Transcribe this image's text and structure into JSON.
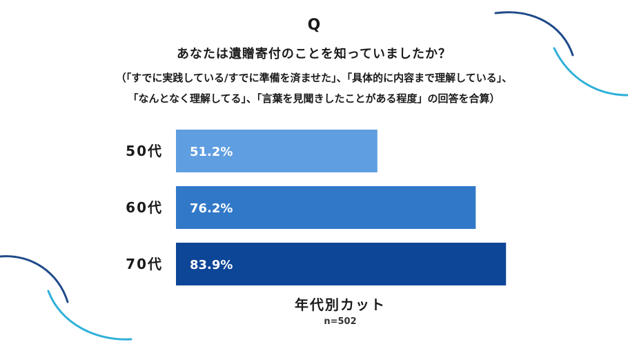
{
  "header": {
    "q_mark": "Q",
    "title": "あなたは遺贈寄付のことを知っていましたか？",
    "subtitle_line1": "（「すでに実践している/すでに準備を済ませた」、「具体的に内容まで理解している」、",
    "subtitle_line2": "「なんとなく理解してる」、「言葉を見聞きしたことがある程度」の回答を合算）"
  },
  "chart_data": {
    "type": "bar",
    "orientation": "horizontal",
    "title": "あなたは遺贈寄付のことを知っていましたか？",
    "categories": [
      "50代",
      "60代",
      "70代"
    ],
    "values": [
      51.2,
      76.2,
      83.9
    ],
    "value_labels": [
      "51.2%",
      "76.2%",
      "83.9%"
    ],
    "bar_colors": [
      "#5f9ee0",
      "#3179c8",
      "#0d4597"
    ],
    "xlabel": "年代別カット",
    "note": "n=502",
    "xlim": [
      0,
      100
    ],
    "grid": false
  },
  "decor": {
    "arc_color_dark": "#1f4a8a",
    "arc_color_light": "#2fb0d8"
  }
}
